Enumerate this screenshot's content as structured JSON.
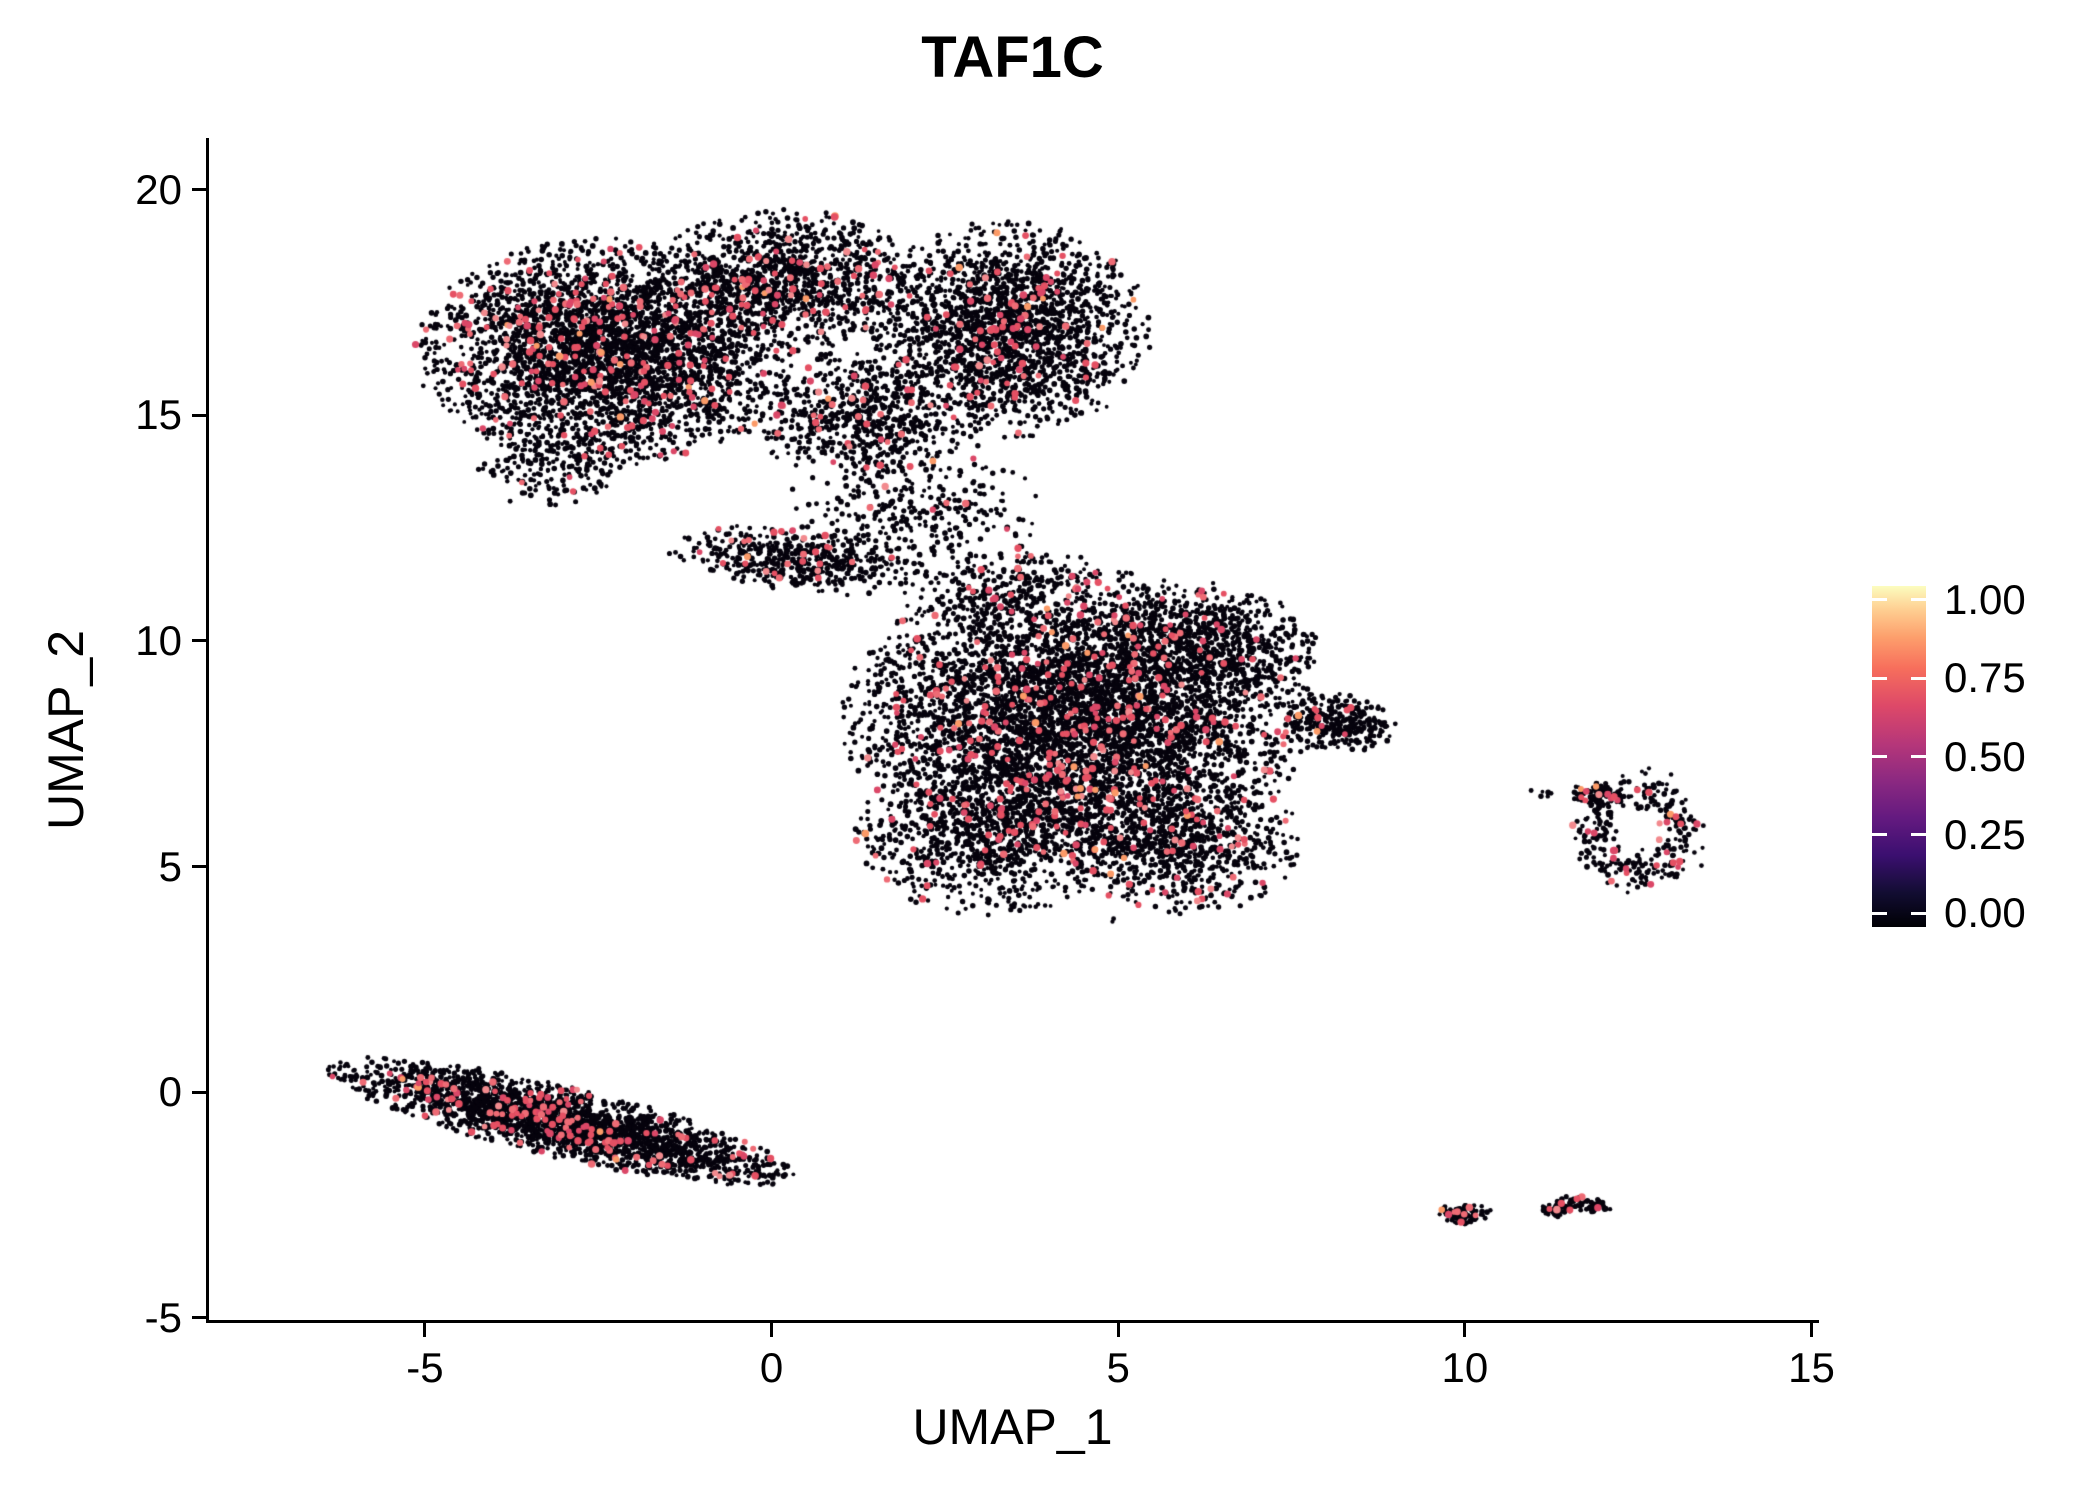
{
  "page": {
    "background": "#FFFFFF"
  },
  "chart_data": {
    "type": "scatter",
    "title": "TAF1C",
    "xlabel": "UMAP_1",
    "ylabel": "UMAP_2",
    "xlim": [
      -8.1,
      15.05
    ],
    "ylim": [
      -5.05,
      21.1
    ],
    "x_ticks": [
      -5,
      0,
      5,
      10,
      15
    ],
    "y_ticks": [
      -5,
      0,
      5,
      10,
      15,
      20
    ],
    "grid": false,
    "legend_position": "right",
    "seed": 1337,
    "point_style": {
      "zero_color": "#06030D",
      "expressed_colors": [
        "#E55063",
        "#DB4767",
        "#EE6B75",
        "#F28A8E",
        "#FB9A67"
      ],
      "expressed_weights": [
        0.42,
        0.24,
        0.2,
        0.09,
        0.05
      ],
      "zero_radius_px": [
        1.9,
        2.9
      ],
      "expressed_radius_px": [
        2.8,
        3.8
      ]
    },
    "legend": {
      "ticks": [
        "1.00",
        "0.75",
        "0.50",
        "0.25",
        "0.00"
      ],
      "tick_values": [
        1,
        0.75,
        0.5,
        0.25,
        0
      ],
      "colormap": "magma",
      "gradient": [
        {
          "color": "#000004",
          "pos": 0
        },
        {
          "color": "#120D32",
          "pos": 10
        },
        {
          "color": "#3B0F70",
          "pos": 21
        },
        {
          "color": "#641A80",
          "pos": 32
        },
        {
          "color": "#8C2981",
          "pos": 43
        },
        {
          "color": "#B73779",
          "pos": 54
        },
        {
          "color": "#DE4968",
          "pos": 65
        },
        {
          "color": "#F76F5C",
          "pos": 76
        },
        {
          "color": "#FD9F6C",
          "pos": 85
        },
        {
          "color": "#FECE91",
          "pos": 93
        },
        {
          "color": "#FCFDBF",
          "pos": 100
        }
      ]
    },
    "clusters": [
      {
        "name": "upper-left-lobe",
        "type": "gauss",
        "cx": -2.4,
        "cy": 16.4,
        "sx": 1.25,
        "sy": 1.15,
        "rot": 0,
        "clip": 2.2,
        "n": 3600,
        "expr_frac": 0.06
      },
      {
        "name": "upper-top-bump",
        "type": "gauss",
        "cx": 0.2,
        "cy": 18.0,
        "sx": 0.95,
        "sy": 0.75,
        "rot": 0,
        "clip": 2.1,
        "n": 1100,
        "expr_frac": 0.06
      },
      {
        "name": "upper-right-lobe",
        "type": "gauss",
        "cx": 3.4,
        "cy": 16.9,
        "sx": 0.95,
        "sy": 1.1,
        "rot": 0,
        "clip": 2.2,
        "n": 2000,
        "expr_frac": 0.055
      },
      {
        "name": "upper-connector",
        "type": "gauss",
        "cx": 1.3,
        "cy": 15.0,
        "sx": 0.85,
        "sy": 0.7,
        "rot": 0,
        "clip": 2.1,
        "n": 650,
        "expr_frac": 0.05
      },
      {
        "name": "upper-left-tail",
        "type": "gauss",
        "cx": -3.2,
        "cy": 13.9,
        "sx": 0.55,
        "sy": 0.45,
        "rot": 20,
        "clip": 2.0,
        "n": 180,
        "expr_frac": 0.04
      },
      {
        "name": "ribbon",
        "type": "gauss",
        "cx": 0.35,
        "cy": 11.8,
        "sx": 0.85,
        "sy": 0.35,
        "rot": -8,
        "clip": 2.2,
        "n": 480,
        "expr_frac": 0.05
      },
      {
        "name": "strand",
        "type": "gauss",
        "cx": 2.1,
        "cy": 12.9,
        "sx": 0.85,
        "sy": 0.8,
        "rot": 0,
        "clip": 2.2,
        "n": 320,
        "expr_frac": 0.04
      },
      {
        "name": "middle-main",
        "type": "gauss",
        "cx": 4.4,
        "cy": 8.3,
        "sx": 1.55,
        "sy": 1.5,
        "rot": 0,
        "clip": 2.2,
        "n": 5200,
        "expr_frac": 0.055
      },
      {
        "name": "middle-upper-right",
        "type": "gauss",
        "cx": 6.2,
        "cy": 9.9,
        "sx": 0.85,
        "sy": 0.7,
        "rot": 0,
        "clip": 2.0,
        "n": 700,
        "expr_frac": 0.05
      },
      {
        "name": "middle-lower-left",
        "type": "gauss",
        "cx": 3.1,
        "cy": 5.7,
        "sx": 0.95,
        "sy": 0.85,
        "rot": 0,
        "clip": 2.1,
        "n": 900,
        "expr_frac": 0.05
      },
      {
        "name": "middle-lower-right",
        "type": "gauss",
        "cx": 5.9,
        "cy": 5.5,
        "sx": 0.85,
        "sy": 0.75,
        "rot": 0,
        "clip": 2.1,
        "n": 800,
        "expr_frac": 0.05
      },
      {
        "name": "middle-arm",
        "type": "gauss",
        "cx": 8.2,
        "cy": 8.2,
        "sx": 0.42,
        "sy": 0.33,
        "rot": -15,
        "clip": 2.0,
        "n": 300,
        "expr_frac": 0.04
      },
      {
        "name": "middle-top-wisp",
        "type": "gauss",
        "cx": 3.3,
        "cy": 11.2,
        "sx": 0.75,
        "sy": 0.45,
        "rot": 10,
        "clip": 2.0,
        "n": 220,
        "expr_frac": 0.04
      },
      {
        "name": "stray-point",
        "type": "gauss",
        "cx": 4.95,
        "cy": 3.8,
        "sx": 0.05,
        "sy": 0.05,
        "rot": 0,
        "clip": 1.0,
        "n": 2,
        "expr_frac": 0
      },
      {
        "name": "right-ring",
        "type": "ring",
        "cx": 12.5,
        "cy": 5.8,
        "rx": 0.62,
        "ry": 0.92,
        "w": 0.16,
        "n": 300,
        "expr_frac": 0.07
      },
      {
        "name": "right-clump",
        "type": "gauss",
        "cx": 11.9,
        "cy": 6.6,
        "sx": 0.2,
        "sy": 0.14,
        "rot": 0,
        "clip": 2.0,
        "n": 90,
        "expr_frac": 0.07
      },
      {
        "name": "right-isolated",
        "type": "gauss",
        "cx": 11.15,
        "cy": 6.62,
        "sx": 0.12,
        "sy": 0.07,
        "rot": 0,
        "clip": 2.0,
        "n": 7,
        "expr_frac": 0
      },
      {
        "name": "bottom-left-streak",
        "type": "gauss",
        "cx": -3.05,
        "cy": -0.65,
        "sx": 1.7,
        "sy": 0.37,
        "rot": -20,
        "clip": 2.1,
        "n": 2400,
        "expr_frac": 0.055
      },
      {
        "name": "bottom-right-a",
        "type": "gauss",
        "cx": 10.0,
        "cy": -2.7,
        "sx": 0.2,
        "sy": 0.12,
        "rot": 0,
        "clip": 2.0,
        "n": 100,
        "expr_frac": 0.06
      },
      {
        "name": "bottom-right-b",
        "type": "gauss",
        "cx": 11.3,
        "cy": -2.6,
        "sx": 0.12,
        "sy": 0.08,
        "rot": 0,
        "clip": 2.0,
        "n": 40,
        "expr_frac": 0.05
      },
      {
        "name": "bottom-right-c",
        "type": "gauss",
        "cx": 11.72,
        "cy": -2.5,
        "sx": 0.22,
        "sy": 0.09,
        "rot": -10,
        "clip": 2.0,
        "n": 60,
        "expr_frac": 0.05
      }
    ]
  }
}
